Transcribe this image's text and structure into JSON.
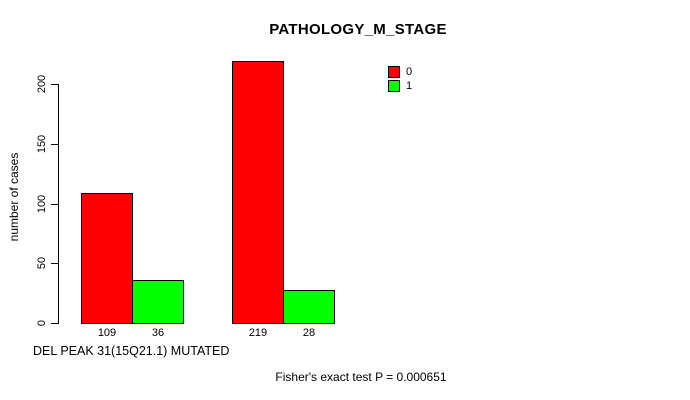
{
  "chart_data": {
    "type": "bar",
    "title": "PATHOLOGY_M_STAGE",
    "ylabel": "number of cases",
    "xlabel": "DEL PEAK 31(15Q21.1) MUTATED",
    "annotation": "Fisher's exact test P = 0.000651",
    "yticks": [
      0,
      50,
      100,
      150,
      200
    ],
    "ylim": [
      0,
      200
    ],
    "grid": false,
    "legend_position": "top-right-inside",
    "legend": [
      {
        "name": "0",
        "color": "#ff0000"
      },
      {
        "name": "1",
        "color": "#00ff00"
      }
    ],
    "groups": [
      {
        "bars": [
          {
            "series": "0",
            "value": 109,
            "label": "109",
            "color": "#ff0000"
          },
          {
            "series": "1",
            "value": 36,
            "label": "36",
            "color": "#00ff00"
          }
        ]
      },
      {
        "bars": [
          {
            "series": "0",
            "value": 219,
            "label": "219",
            "color": "#ff0000"
          },
          {
            "series": "1",
            "value": 28,
            "label": "28",
            "color": "#00ff00"
          }
        ]
      }
    ]
  }
}
